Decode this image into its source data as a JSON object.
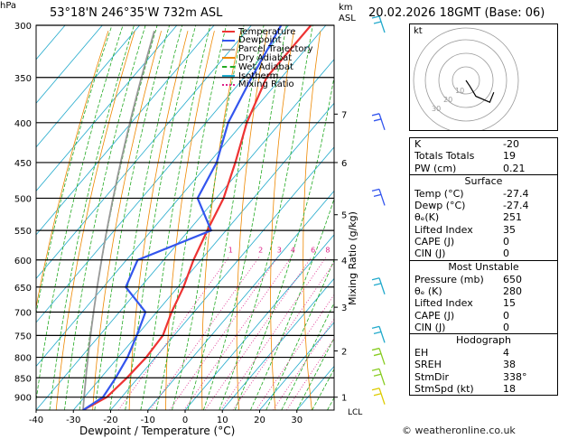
{
  "header": {
    "location": "53°18'N  246°35'W  732m  ASL",
    "datetime": "20.02.2026  18GMT  (Base: 06)"
  },
  "axes": {
    "pressure_unit": "hPa",
    "height_unit_km": "km",
    "height_unit_asl": "ASL",
    "xlabel": "Dewpoint / Temperature (°C)",
    "mixing_ratio_label": "Mixing Ratio (g/kg)",
    "lcl_label": "LCL"
  },
  "legend": [
    {
      "label": "Temperature",
      "color": "#ee3333"
    },
    {
      "label": "Dewpoint",
      "color": "#3355ee"
    },
    {
      "label": "Parcel Trajectory",
      "color": "#999999"
    },
    {
      "label": "Dry Adiabat",
      "color": "#ee8800"
    },
    {
      "label": "Wet Adiabat",
      "color": "#22aa22"
    },
    {
      "label": "Isotherm",
      "color": "#22aacc"
    },
    {
      "label": "Mixing Ratio",
      "color": "#dd2288"
    }
  ],
  "hodograph": {
    "unit": "kt",
    "ring_labels": [
      "10",
      "20",
      "30"
    ],
    "points": [
      [
        0,
        0
      ],
      [
        2,
        -3
      ],
      [
        5,
        -8
      ],
      [
        12,
        -11
      ],
      [
        14,
        -6
      ]
    ]
  },
  "chart_data": {
    "type": "line",
    "subtype": "skew-t log-p",
    "pressure_levels": [
      300,
      350,
      400,
      450,
      500,
      550,
      600,
      650,
      700,
      750,
      800,
      850,
      900
    ],
    "temperature_ticks": [
      -40,
      -30,
      -20,
      -10,
      0,
      10,
      20,
      30
    ],
    "height_km_ticks": [
      {
        "km": "1",
        "p": 900
      },
      {
        "km": "2",
        "p": 785
      },
      {
        "km": "3",
        "p": 690
      },
      {
        "km": "4",
        "p": 600
      },
      {
        "km": "5",
        "p": 525
      },
      {
        "km": "6",
        "p": 450
      },
      {
        "km": "7",
        "p": 390
      }
    ],
    "mixing_ratio_values": [
      "1",
      "2",
      "3",
      "4",
      "6",
      "8",
      "10",
      "15",
      "20",
      "25"
    ],
    "mixing_ratio_label_p": 590,
    "xlim": [
      -40,
      40
    ],
    "ylim": [
      300,
      935
    ],
    "series": [
      {
        "name": "Temperature",
        "color": "#ee3333",
        "p": [
          935,
          900,
          850,
          800,
          750,
          700,
          650,
          600,
          550,
          500,
          450,
          400,
          350,
          300
        ],
        "t": [
          -27.4,
          -24,
          -23,
          -22.5,
          -23,
          -26,
          -28.5,
          -32,
          -35,
          -38,
          -43,
          -49,
          -54,
          -54
        ]
      },
      {
        "name": "Dewpoint",
        "color": "#3355ee",
        "p": [
          935,
          900,
          850,
          800,
          750,
          700,
          650,
          600,
          550,
          500,
          450,
          400,
          350,
          300
        ],
        "t": [
          -27.4,
          -25,
          -26,
          -27.5,
          -30,
          -33,
          -44,
          -47,
          -34,
          -45,
          -48,
          -54,
          -58,
          -62
        ]
      }
    ]
  },
  "indices": {
    "basic": [
      {
        "k": "K",
        "v": "-20"
      },
      {
        "k": "Totals Totals",
        "v": "19"
      },
      {
        "k": "PW (cm)",
        "v": "0.21"
      }
    ],
    "surface": {
      "title": "Surface",
      "rows": [
        {
          "k": "Temp (°C)",
          "v": "-27.4"
        },
        {
          "k": "Dewp (°C)",
          "v": "-27.4"
        },
        {
          "k": "θₑ(K)",
          "v": "251"
        },
        {
          "k": "Lifted Index",
          "v": "35"
        },
        {
          "k": "CAPE (J)",
          "v": "0"
        },
        {
          "k": "CIN (J)",
          "v": "0"
        }
      ]
    },
    "unstable": {
      "title": "Most Unstable",
      "rows": [
        {
          "k": "Pressure (mb)",
          "v": "650"
        },
        {
          "k": "θₑ (K)",
          "v": "280"
        },
        {
          "k": "Lifted Index",
          "v": "15"
        },
        {
          "k": "CAPE (J)",
          "v": "0"
        },
        {
          "k": "CIN (J)",
          "v": "0"
        }
      ]
    },
    "hodograph": {
      "title": "Hodograph",
      "rows": [
        {
          "k": "EH",
          "v": "4"
        },
        {
          "k": "SREH",
          "v": "38"
        },
        {
          "k": "StmDir",
          "v": "338°"
        },
        {
          "k": "StmSpd (kt)",
          "v": "18"
        }
      ]
    }
  },
  "credit": "© weatheronline.co.uk"
}
